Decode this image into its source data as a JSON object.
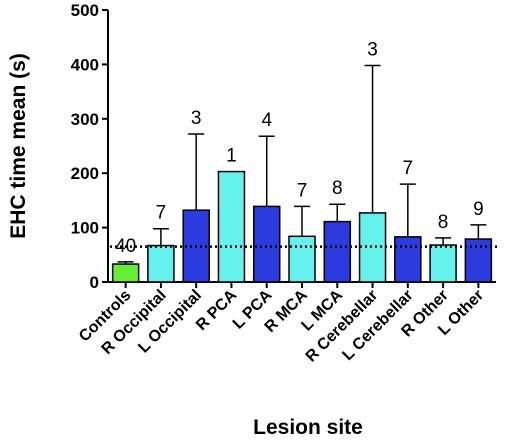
{
  "chart_data": {
    "type": "bar",
    "title": "",
    "xlabel": "Lesion site",
    "ylabel": "EHC time mean (s)",
    "ylim": [
      0,
      500
    ],
    "yticks": [
      0,
      100,
      200,
      300,
      400,
      500
    ],
    "grid": false,
    "reference_line": {
      "y": 65,
      "style": "dotted"
    },
    "categories": [
      "Controls",
      "R Occipital",
      "L Occipital",
      "R PCA",
      "L PCA",
      "R MCA",
      "L MCA",
      "R Cerebellar",
      "L Cerebellar",
      "R Other",
      "L Other"
    ],
    "values": [
      33,
      67,
      132,
      203,
      139,
      84,
      111,
      127,
      83,
      68,
      79
    ],
    "error_upper": [
      37,
      98,
      272,
      null,
      268,
      139,
      143,
      398,
      180,
      81,
      105
    ],
    "n_labels": [
      "40",
      "7",
      "3",
      "1",
      "4",
      "7",
      "8",
      "3",
      "7",
      "8",
      "9"
    ],
    "colors": [
      "#66ee33",
      "#66f2ec",
      "#2b3bdd",
      "#66f2ec",
      "#2b3bdd",
      "#66f2ec",
      "#2b3bdd",
      "#66f2ec",
      "#2b3bdd",
      "#66f2ec",
      "#2b3bdd"
    ]
  }
}
